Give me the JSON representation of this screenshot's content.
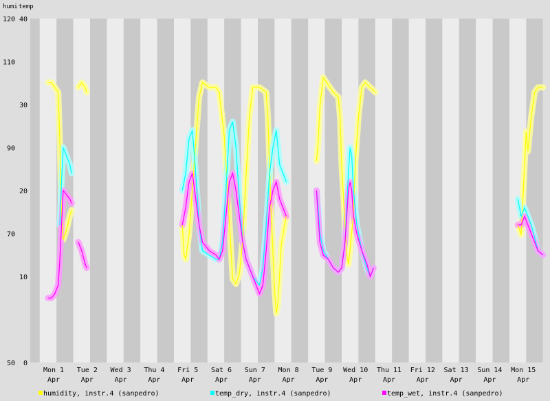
{
  "chart_data": {
    "type": "line",
    "axis_titles": {
      "left_1": "humi",
      "left_2": "temp"
    },
    "left_axis_ticks": [
      {
        "humi": "120",
        "temp": "40"
      },
      {
        "humi": "110",
        "temp": ""
      },
      {
        "humi": "",
        "temp": "30"
      },
      {
        "humi": "90",
        "temp": ""
      },
      {
        "humi": "",
        "temp": "20"
      },
      {
        "humi": "70",
        "temp": ""
      },
      {
        "humi": "",
        "temp": "10"
      },
      {
        "humi": "50",
        "temp": "0"
      }
    ],
    "humi_ylim": [
      50,
      120
    ],
    "temp_ylim": [
      0,
      40
    ],
    "x_range_days": [
      0,
      15
    ],
    "day_labels": [
      {
        "day": "Mon 1",
        "month": "Apr"
      },
      {
        "day": "Tue 2",
        "month": "Apr"
      },
      {
        "day": "Wed 3",
        "month": "Apr"
      },
      {
        "day": "Thu 4",
        "month": "Apr"
      },
      {
        "day": "Fri 5",
        "month": "Apr"
      },
      {
        "day": "Sat 6",
        "month": "Apr"
      },
      {
        "day": "Sun 7",
        "month": "Apr"
      },
      {
        "day": "Mon 8",
        "month": "Apr"
      },
      {
        "day": "Tue 9",
        "month": "Apr"
      },
      {
        "day": "Wed 10",
        "month": "Apr"
      },
      {
        "day": "Thu 11",
        "month": "Apr"
      },
      {
        "day": "Fri 12",
        "month": "Apr"
      },
      {
        "day": "Sat 13",
        "month": "Apr"
      },
      {
        "day": "Sun 14",
        "month": "Apr"
      },
      {
        "day": "Mon 15",
        "month": "Apr"
      }
    ],
    "grid": "alternating night/day vertical bands",
    "legend_placement": "bottom",
    "series": [
      {
        "name": "humidity, instr.4 (sanpedro)",
        "axis": "humi",
        "color": "#ffff00",
        "band_color": "#ffff99",
        "segments": [
          [
            [
              0.0,
              107
            ],
            [
              0.1,
              107
            ],
            [
              0.2,
              106
            ],
            [
              0.3,
              105
            ],
            [
              0.35,
              95
            ],
            [
              0.4,
              80
            ],
            [
              0.45,
              75
            ],
            [
              0.55,
              77
            ],
            [
              0.65,
              80
            ],
            [
              0.7,
              81
            ]
          ],
          [
            [
              0.9,
              106
            ],
            [
              1.0,
              107
            ],
            [
              1.1,
              106
            ],
            [
              1.15,
              105
            ]
          ],
          [
            [
              4.0,
              78
            ],
            [
              4.05,
              72
            ],
            [
              4.1,
              71
            ],
            [
              4.2,
              76
            ],
            [
              4.3,
              85
            ],
            [
              4.4,
              95
            ],
            [
              4.5,
              104
            ],
            [
              4.6,
              107
            ],
            [
              4.8,
              106
            ],
            [
              5.0,
              106
            ],
            [
              5.1,
              105
            ],
            [
              5.25,
              96
            ],
            [
              5.35,
              85
            ],
            [
              5.45,
              73
            ],
            [
              5.5,
              67
            ],
            [
              5.6,
              66
            ],
            [
              5.7,
              68
            ],
            [
              5.8,
              75
            ],
            [
              5.9,
              88
            ],
            [
              6.0,
              100
            ],
            [
              6.1,
              106
            ],
            [
              6.3,
              106
            ],
            [
              6.5,
              105
            ],
            [
              6.55,
              100
            ],
            [
              6.65,
              80
            ],
            [
              6.75,
              65
            ],
            [
              6.8,
              60
            ],
            [
              6.85,
              62
            ],
            [
              6.95,
              74
            ],
            [
              7.1,
              80
            ]
          ],
          [
            [
              8.0,
              91
            ],
            [
              8.05,
              95
            ],
            [
              8.1,
              102
            ],
            [
              8.2,
              108
            ],
            [
              8.3,
              107
            ],
            [
              8.5,
              105
            ],
            [
              8.65,
              104
            ],
            [
              8.7,
              100
            ],
            [
              8.75,
              90
            ],
            [
              8.8,
              84
            ],
            [
              8.85,
              78
            ],
            [
              8.9,
              72
            ],
            [
              8.95,
              70
            ],
            [
              9.0,
              73
            ],
            [
              9.1,
              80
            ],
            [
              9.15,
              90
            ],
            [
              9.25,
              100
            ],
            [
              9.35,
              106
            ],
            [
              9.45,
              107
            ],
            [
              9.6,
              106
            ],
            [
              9.75,
              105
            ]
          ],
          [
            [
              14.0,
              78
            ],
            [
              14.1,
              76
            ],
            [
              14.2,
              90
            ],
            [
              14.25,
              97
            ],
            [
              14.3,
              93
            ],
            [
              14.4,
              100
            ],
            [
              14.5,
              105
            ],
            [
              14.6,
              106
            ],
            [
              14.75,
              106
            ]
          ]
        ]
      },
      {
        "name": "temp_dry, instr.4 (sanpedro)",
        "axis": "temp",
        "color": "#00ffff",
        "band_color": "#aaffff",
        "segments": [
          [
            [
              0.35,
              16
            ],
            [
              0.4,
              21
            ],
            [
              0.45,
              25
            ],
            [
              0.55,
              24
            ],
            [
              0.65,
              23
            ],
            [
              0.7,
              22
            ]
          ],
          [
            [
              4.0,
              20
            ],
            [
              4.1,
              22
            ],
            [
              4.2,
              26
            ],
            [
              4.3,
              27
            ],
            [
              4.4,
              22
            ],
            [
              4.5,
              16
            ],
            [
              4.6,
              13
            ],
            [
              4.8,
              12.5
            ],
            [
              5.0,
              12
            ],
            [
              5.1,
              12
            ],
            [
              5.2,
              14
            ],
            [
              5.3,
              20
            ],
            [
              5.4,
              27
            ],
            [
              5.5,
              28
            ],
            [
              5.6,
              25
            ],
            [
              5.7,
              19
            ],
            [
              5.8,
              14
            ],
            [
              5.9,
              12
            ],
            [
              6.1,
              10
            ],
            [
              6.3,
              9
            ],
            [
              6.4,
              11
            ],
            [
              6.5,
              16
            ],
            [
              6.6,
              22
            ],
            [
              6.7,
              25
            ],
            [
              6.8,
              27
            ],
            [
              6.9,
              23
            ],
            [
              7.0,
              22
            ],
            [
              7.1,
              21
            ]
          ],
          [
            [
              8.0,
              20
            ],
            [
              8.05,
              18
            ],
            [
              8.1,
              15
            ],
            [
              8.2,
              13
            ],
            [
              8.35,
              12
            ],
            [
              8.5,
              11
            ],
            [
              8.65,
              10.5
            ],
            [
              8.75,
              11
            ],
            [
              8.85,
              14
            ],
            [
              8.9,
              18
            ],
            [
              8.95,
              22
            ],
            [
              9.0,
              25
            ],
            [
              9.05,
              24
            ],
            [
              9.1,
              20
            ],
            [
              9.2,
              16
            ],
            [
              9.35,
              13
            ],
            [
              9.5,
              11
            ],
            [
              9.6,
              10
            ],
            [
              9.7,
              11
            ]
          ],
          [
            [
              14.0,
              19
            ],
            [
              14.1,
              17
            ],
            [
              14.2,
              18
            ],
            [
              14.3,
              17
            ],
            [
              14.4,
              16
            ],
            [
              14.6,
              13
            ],
            [
              14.75,
              12.5
            ]
          ]
        ]
      },
      {
        "name": "temp_wet, instr.4 (sanpedro)",
        "axis": "temp",
        "color": "#ff00ff",
        "band_color": "#ff99ff",
        "segments": [
          [
            [
              0.0,
              7.5
            ],
            [
              0.1,
              7.5
            ],
            [
              0.2,
              8
            ],
            [
              0.3,
              9
            ],
            [
              0.35,
              12
            ],
            [
              0.4,
              16
            ],
            [
              0.45,
              20
            ],
            [
              0.55,
              19.5
            ],
            [
              0.65,
              19
            ],
            [
              0.7,
              18.5
            ]
          ],
          [
            [
              0.9,
              14
            ],
            [
              1.0,
              13
            ],
            [
              1.1,
              11.5
            ],
            [
              1.15,
              11
            ]
          ],
          [
            [
              4.0,
              16
            ],
            [
              4.1,
              18
            ],
            [
              4.2,
              21
            ],
            [
              4.3,
              22
            ],
            [
              4.4,
              19
            ],
            [
              4.5,
              16
            ],
            [
              4.6,
              14
            ],
            [
              4.8,
              13
            ],
            [
              5.0,
              12.5
            ],
            [
              5.1,
              12
            ],
            [
              5.2,
              13
            ],
            [
              5.3,
              17
            ],
            [
              5.4,
              21
            ],
            [
              5.5,
              22
            ],
            [
              5.6,
              20
            ],
            [
              5.7,
              17
            ],
            [
              5.8,
              14
            ],
            [
              5.9,
              12
            ],
            [
              6.1,
              10
            ],
            [
              6.3,
              8
            ],
            [
              6.4,
              9
            ],
            [
              6.5,
              13
            ],
            [
              6.6,
              18
            ],
            [
              6.7,
              20
            ],
            [
              6.8,
              21
            ],
            [
              6.9,
              19
            ],
            [
              7.0,
              18
            ],
            [
              7.1,
              17
            ]
          ],
          [
            [
              8.0,
              20
            ],
            [
              8.05,
              17
            ],
            [
              8.1,
              14
            ],
            [
              8.2,
              12.5
            ],
            [
              8.35,
              12
            ],
            [
              8.5,
              11
            ],
            [
              8.65,
              10.5
            ],
            [
              8.75,
              11
            ],
            [
              8.85,
              14
            ],
            [
              8.9,
              17
            ],
            [
              8.95,
              20
            ],
            [
              9.0,
              21
            ],
            [
              9.05,
              20
            ],
            [
              9.1,
              17
            ],
            [
              9.2,
              15
            ],
            [
              9.35,
              13
            ],
            [
              9.5,
              11.5
            ],
            [
              9.6,
              10
            ],
            [
              9.7,
              11
            ]
          ],
          [
            [
              14.0,
              16
            ],
            [
              14.1,
              16
            ],
            [
              14.2,
              17
            ],
            [
              14.3,
              16
            ],
            [
              14.4,
              15
            ],
            [
              14.6,
              13
            ],
            [
              14.75,
              12.5
            ]
          ]
        ]
      }
    ]
  }
}
